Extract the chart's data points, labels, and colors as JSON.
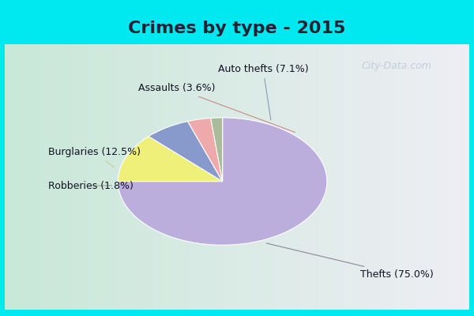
{
  "title": "Crimes by type - 2015",
  "labels": [
    "Thefts",
    "Burglaries",
    "Auto thefts",
    "Assaults",
    "Robberies"
  ],
  "display_labels": [
    "Thefts (75.0%)",
    "Burglaries (12.5%)",
    "Auto thefts (7.1%)",
    "Assaults (3.6%)",
    "Robberies (1.8%)"
  ],
  "values": [
    75.0,
    12.5,
    7.1,
    3.6,
    1.8
  ],
  "colors": [
    "#bbaedd",
    "#eef07a",
    "#8899cc",
    "#eeaaaa",
    "#aabb99"
  ],
  "bg_cyan": "#00e8f0",
  "bg_main_left": "#c8e8d0",
  "bg_main_right": "#e8e0f0",
  "title_fontsize": 16,
  "title_color": "#222233",
  "label_fontsize": 9,
  "startangle": 90,
  "watermark": "City-Data.com",
  "watermark_color": "#aabbcc",
  "label_color": "#111122",
  "arrow_color": "#888899"
}
